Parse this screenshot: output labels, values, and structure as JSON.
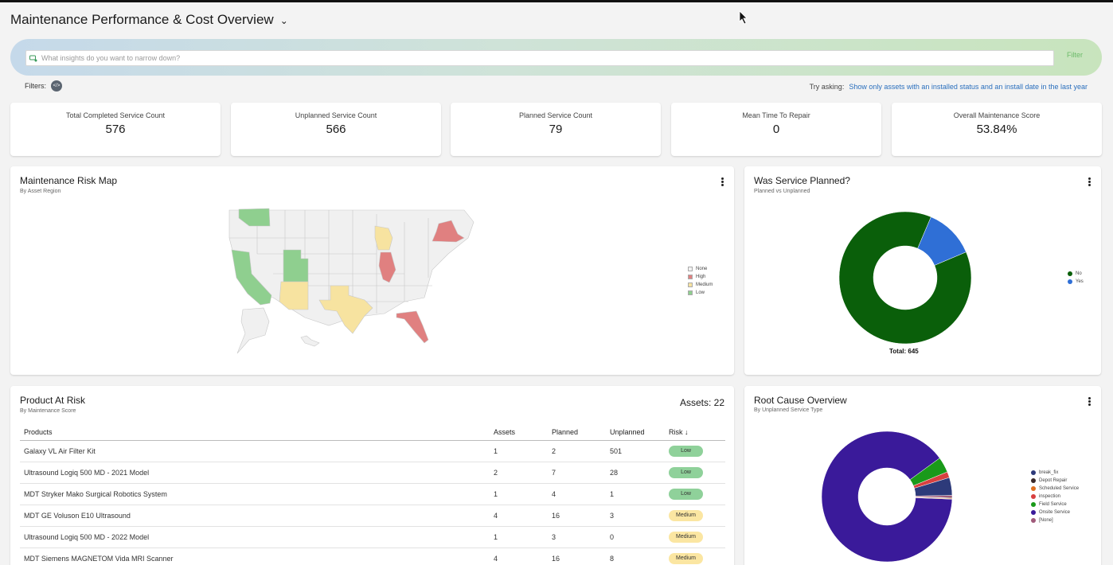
{
  "header": {
    "title": "Maintenance Performance & Cost Overview"
  },
  "search": {
    "placeholder": "What insights do you want to narrow down?",
    "filter_label": "Filter"
  },
  "filters": {
    "label": "Filters:"
  },
  "try_asking": {
    "label": "Try asking:",
    "suggestion": "Show only assets with an installed status and an install date in the last year"
  },
  "kpis": [
    {
      "label": "Total Completed Service Count",
      "value": "576"
    },
    {
      "label": "Unplanned Service Count",
      "value": "566"
    },
    {
      "label": "Planned Service Count",
      "value": "79"
    },
    {
      "label": "Mean Time To Repair",
      "value": "0"
    },
    {
      "label": "Overall Maintenance Score",
      "value": "53.84%"
    }
  ],
  "risk_map": {
    "title": "Maintenance Risk Map",
    "subtitle": "By Asset Region",
    "legend": [
      {
        "label": "None",
        "color": "#f2f2f2"
      },
      {
        "label": "High",
        "color": "#e08080"
      },
      {
        "label": "Medium",
        "color": "#f7e3a0"
      },
      {
        "label": "Low",
        "color": "#8fcf8f"
      }
    ]
  },
  "service_planned": {
    "title": "Was Service Planned?",
    "subtitle": "Planned vs Unplanned",
    "total_label": "Total: 645",
    "legend": [
      {
        "label": "No",
        "color": "#0a5f0a"
      },
      {
        "label": "Yes",
        "color": "#2f6fd6"
      }
    ],
    "chart_data": {
      "type": "pie",
      "categories": [
        "No",
        "Yes"
      ],
      "values": [
        566,
        79
      ]
    }
  },
  "product_risk": {
    "title": "Product At Risk",
    "subtitle": "By Maintenance Score",
    "assets_label": "Assets: 22",
    "columns": [
      "Products",
      "Assets",
      "Planned",
      "Unplanned",
      "Risk ↓"
    ],
    "rows": [
      {
        "product": "Galaxy VL Air Filter Kit",
        "assets": "1",
        "planned": "2",
        "unplanned": "501",
        "risk": "Low"
      },
      {
        "product": "Ultrasound Logiq 500 MD - 2021 Model",
        "assets": "2",
        "planned": "7",
        "unplanned": "28",
        "risk": "Low"
      },
      {
        "product": "MDT Stryker Mako Surgical Robotics System",
        "assets": "1",
        "planned": "4",
        "unplanned": "1",
        "risk": "Low"
      },
      {
        "product": "MDT GE Voluson E10 Ultrasound",
        "assets": "4",
        "planned": "16",
        "unplanned": "3",
        "risk": "Medium"
      },
      {
        "product": "Ultrasound Logiq 500 MD - 2022 Model",
        "assets": "1",
        "planned": "3",
        "unplanned": "0",
        "risk": "Medium"
      },
      {
        "product": "MDT Siemens MAGNETOM Vida MRI Scanner",
        "assets": "4",
        "planned": "16",
        "unplanned": "8",
        "risk": "Medium"
      }
    ],
    "risk_colors": {
      "Low": "#8fd19a",
      "Medium": "#fbe6a2"
    }
  },
  "root_cause": {
    "title": "Root Cause Overview",
    "subtitle": "By Unplanned Service Type",
    "legend": [
      {
        "label": "break_fix",
        "color": "#2d3a7a"
      },
      {
        "label": "Depot Repair",
        "color": "#3a2a2a"
      },
      {
        "label": "Scheduled Service",
        "color": "#e0701e"
      },
      {
        "label": "inspection",
        "color": "#d84040"
      },
      {
        "label": "Field Service",
        "color": "#1a9a1a"
      },
      {
        "label": "Onsite Service",
        "color": "#3a1a9a"
      },
      {
        "label": "[None]",
        "color": "#a05a7a"
      }
    ],
    "chart_data": {
      "type": "pie",
      "categories": [
        "Onsite Service",
        "Field Service",
        "inspection",
        "break_fix",
        "[None]",
        "Depot Repair",
        "Scheduled Service"
      ],
      "values": [
        486,
        21,
        8,
        24,
        3,
        1,
        1
      ]
    }
  }
}
